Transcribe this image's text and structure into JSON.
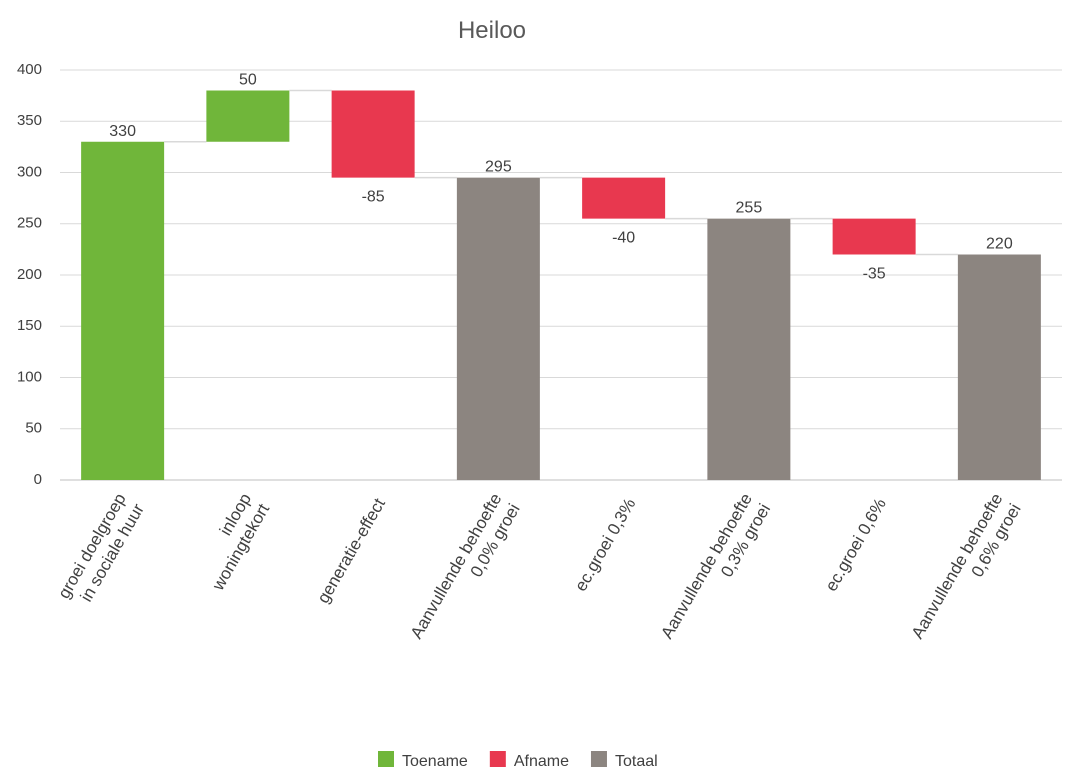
{
  "chart_data": {
    "type": "waterfall",
    "title": "Heiloo",
    "categories": [
      [
        "groei doelgroep",
        "in sociale huur"
      ],
      [
        "inloop",
        "woningtekort"
      ],
      [
        "generatie-effect"
      ],
      [
        "Aanvullende behoefte",
        "0,0% groei"
      ],
      [
        "ec.groei 0,3%"
      ],
      [
        "Aanvullende behoefte",
        "0,3% groei"
      ],
      [
        "ec.groei 0,6%"
      ],
      [
        "Aanvullende behoefte",
        "0,6% groei"
      ]
    ],
    "series": [
      {
        "name": "Toename",
        "color": "#70b63a",
        "values": [
          330,
          50,
          null,
          null,
          null,
          null,
          null,
          null
        ]
      },
      {
        "name": "Afname",
        "color": "#e8384f",
        "values": [
          null,
          null,
          -85,
          null,
          -40,
          null,
          -35,
          null
        ]
      },
      {
        "name": "Totaal",
        "color": "#8c8580",
        "values": [
          null,
          null,
          null,
          295,
          null,
          255,
          null,
          220
        ]
      }
    ],
    "ylim": [
      0,
      400
    ],
    "yticks": [
      0,
      50,
      100,
      150,
      200,
      250,
      300,
      350,
      400
    ],
    "grid": true
  }
}
